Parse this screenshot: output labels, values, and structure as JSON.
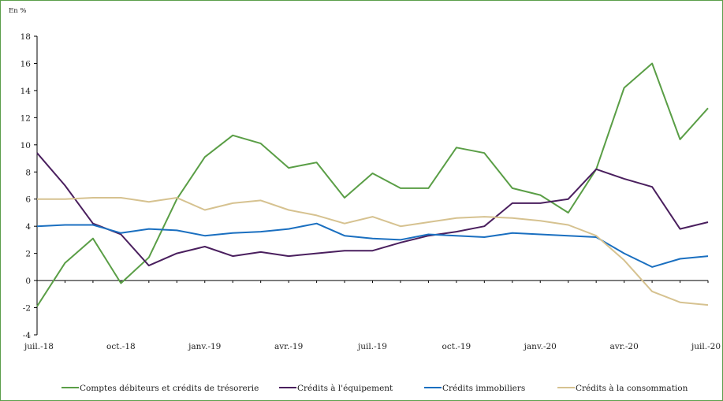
{
  "chart_data": {
    "type": "line",
    "unit_label": "En %",
    "title": "",
    "xlabel": "",
    "ylabel": "",
    "ylim": [
      -4,
      18
    ],
    "yticks": [
      -4,
      -2,
      0,
      2,
      4,
      6,
      8,
      10,
      12,
      14,
      16,
      18
    ],
    "x": [
      "juil.-18",
      "août-18",
      "sept.-18",
      "oct.-18",
      "nov.-18",
      "déc.-18",
      "janv.-19",
      "févr.-19",
      "mars-19",
      "avr.-19",
      "mai-19",
      "juin-19",
      "juil.-19",
      "août-19",
      "sept.-19",
      "oct.-19",
      "nov.-19",
      "déc.-19",
      "janv.-20",
      "févr.-20",
      "mars-20",
      "avr.-20",
      "mai-20",
      "juin-20",
      "juil.-20"
    ],
    "x_tick_labels": [
      {
        "index": 0,
        "label": "juil.-18"
      },
      {
        "index": 3,
        "label": "oct.-18"
      },
      {
        "index": 6,
        "label": "janv.-19"
      },
      {
        "index": 9,
        "label": "avr.-19"
      },
      {
        "index": 12,
        "label": "juil.-19"
      },
      {
        "index": 15,
        "label": "oct.-19"
      },
      {
        "index": 18,
        "label": "janv.-20"
      },
      {
        "index": 21,
        "label": "avr.-20"
      },
      {
        "index": 24,
        "label": "juil.-20"
      }
    ],
    "grid": false,
    "legend_position": "bottom",
    "series": [
      {
        "name": "Comptes débiteurs et crédits de trésorerie",
        "color": "#5a9e46",
        "values": [
          -1.9,
          1.3,
          3.1,
          -0.2,
          1.7,
          6.0,
          9.1,
          10.7,
          10.1,
          8.3,
          8.7,
          6.1,
          7.9,
          6.8,
          6.8,
          9.8,
          9.4,
          6.8,
          6.3,
          5.0,
          8.2,
          14.2,
          16.0,
          10.4,
          12.7
        ]
      },
      {
        "name": "Crédits à l'équipement",
        "color": "#4a1f5e",
        "values": [
          9.4,
          7.0,
          4.2,
          3.4,
          1.1,
          2.0,
          2.5,
          1.8,
          2.1,
          1.8,
          2.0,
          2.2,
          2.2,
          2.8,
          3.3,
          3.6,
          4.0,
          5.7,
          5.7,
          6.0,
          8.2,
          7.5,
          6.9,
          3.8,
          4.3
        ]
      },
      {
        "name": "Crédits immobiliers",
        "color": "#1a6fc0",
        "values": [
          4.0,
          4.1,
          4.1,
          3.5,
          3.8,
          3.7,
          3.3,
          3.5,
          3.6,
          3.8,
          4.2,
          3.3,
          3.1,
          3.0,
          3.4,
          3.3,
          3.2,
          3.5,
          3.4,
          3.3,
          3.2,
          2.0,
          1.0,
          1.6,
          1.8
        ]
      },
      {
        "name": "Crédits à la consommation",
        "color": "#d6c290",
        "values": [
          6.0,
          6.0,
          6.1,
          6.1,
          5.8,
          6.1,
          5.2,
          5.7,
          5.9,
          5.2,
          4.8,
          4.2,
          4.7,
          4.0,
          4.3,
          4.6,
          4.7,
          4.6,
          4.4,
          4.1,
          3.3,
          1.5,
          -0.8,
          -1.6,
          -1.8
        ]
      }
    ]
  }
}
